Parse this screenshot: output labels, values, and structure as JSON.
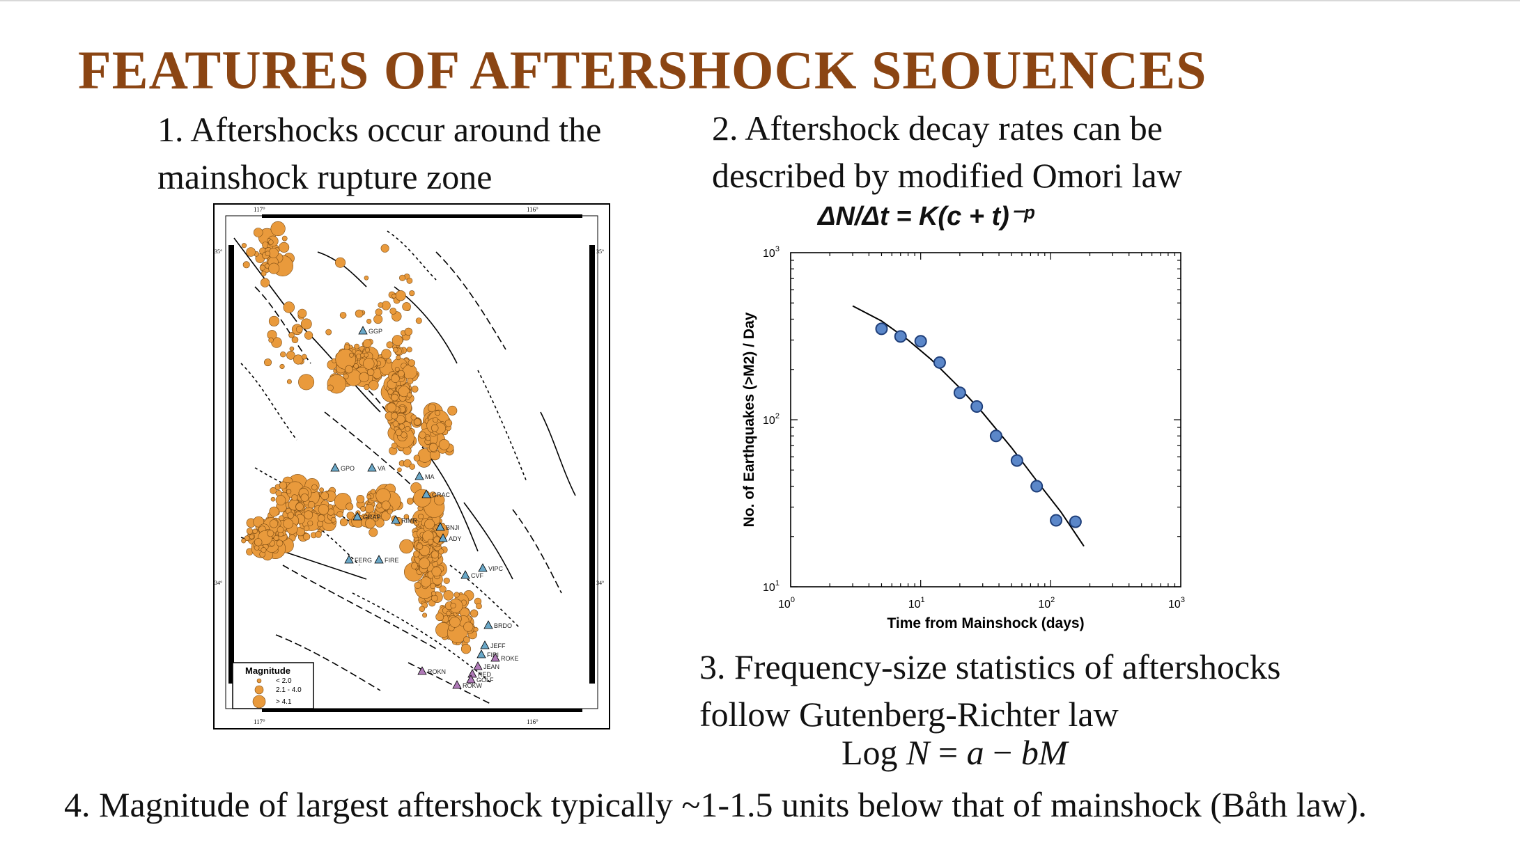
{
  "slide": {
    "title": "FEATURES OF AFTERSHOCK SEOUENCES",
    "point1": [
      "1. Aftershocks occur around the",
      "mainshock rupture zone"
    ],
    "point2": [
      "2. Aftershock decay rates can be",
      "described by modified Omori law"
    ],
    "omori_formula": "ΔN/Δt  = K(c + t)⁻ᵖ",
    "point3": [
      "3. Frequency-size statistics of aftershocks",
      "follow Gutenberg-Richter law"
    ],
    "gr_formula": {
      "pre": "Log ",
      "N": "N",
      "eq": " = ",
      "a": "a",
      "minus": " − ",
      "bM": "bM"
    },
    "point4": "4. Magnitude of largest aftershock typically ~1-1.5 units below that of mainshock (Båth law)."
  },
  "map": {
    "lon_labels": [
      "117°",
      "116°"
    ],
    "lat_labels": [
      "35°",
      "34°"
    ],
    "legend": {
      "title": "Magnitude",
      "items": [
        "< 2.0",
        "2.1 - 4.0",
        "> 4.1"
      ]
    },
    "stations": [
      "GGP",
      "GPO",
      "VA",
      "MA",
      "GRAC",
      "GRAP",
      "RIMR",
      "BNJI",
      "ADY",
      "FERG",
      "FIRE",
      "VIPC",
      "CVF",
      "BRDO",
      "JEFF",
      "FIRI",
      "ROKE",
      "ROKN",
      "JEAN",
      "RED",
      "GOLF",
      "ROKW"
    ],
    "colors": {
      "event": "#e99a3c",
      "event_stroke": "#7a4a12",
      "station": "#6aa8c8"
    }
  },
  "chart_data": {
    "type": "scatter",
    "xscale": "log",
    "yscale": "log",
    "xlim": [
      1,
      1000
    ],
    "ylim": [
      10,
      1000
    ],
    "xlabel": "Time from Mainshock (days)",
    "ylabel": "No. of Earthquakes (>M2) / Day",
    "xticks": [
      "10^0",
      "10^1",
      "10^2",
      "10^3"
    ],
    "yticks": [
      "10^1",
      "10^2",
      "10^3"
    ],
    "points": [
      {
        "x": 5,
        "y": 350
      },
      {
        "x": 7,
        "y": 315
      },
      {
        "x": 10,
        "y": 295
      },
      {
        "x": 14,
        "y": 220
      },
      {
        "x": 20,
        "y": 145
      },
      {
        "x": 27,
        "y": 120
      },
      {
        "x": 38,
        "y": 80
      },
      {
        "x": 55,
        "y": 57
      },
      {
        "x": 78,
        "y": 40
      },
      {
        "x": 110,
        "y": 25
      },
      {
        "x": 155,
        "y": 24.5
      }
    ],
    "fit_curve": [
      {
        "x": 3,
        "y": 480
      },
      {
        "x": 5,
        "y": 390
      },
      {
        "x": 8,
        "y": 300
      },
      {
        "x": 12,
        "y": 230
      },
      {
        "x": 20,
        "y": 155
      },
      {
        "x": 30,
        "y": 110
      },
      {
        "x": 50,
        "y": 68
      },
      {
        "x": 80,
        "y": 42
      },
      {
        "x": 120,
        "y": 28
      },
      {
        "x": 180,
        "y": 17.5
      }
    ],
    "colors": {
      "marker": "#5b87c9",
      "marker_stroke": "#1f3f7a",
      "line": "#000000"
    }
  }
}
